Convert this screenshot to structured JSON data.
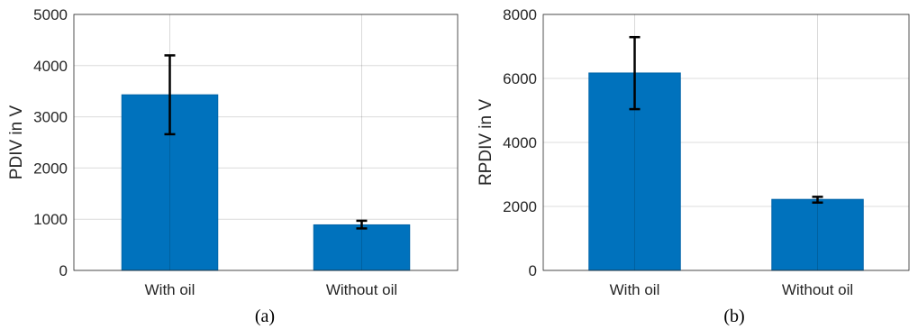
{
  "chart_data": [
    {
      "type": "bar",
      "categories": [
        "With oil",
        "Without oil"
      ],
      "values": [
        3430,
        890
      ],
      "error": [
        [
          2660,
          4200
        ],
        [
          820,
          970
        ]
      ],
      "ylabel": "PDIV in V",
      "ylim": [
        0,
        5000
      ],
      "yticks": [
        0,
        1000,
        2000,
        3000,
        4000,
        5000
      ],
      "caption": "(a)",
      "grid": true,
      "bar_color": "#0072BD"
    },
    {
      "type": "bar",
      "categories": [
        "With oil",
        "Without oil"
      ],
      "values": [
        6170,
        2220
      ],
      "error": [
        [
          5040,
          7290
        ],
        [
          2120,
          2300
        ]
      ],
      "ylabel": "RPDIV in V",
      "ylim": [
        0,
        8000
      ],
      "yticks": [
        0,
        2000,
        4000,
        6000,
        8000
      ],
      "caption": "(b)",
      "grid": true,
      "bar_color": "#0072BD"
    }
  ]
}
